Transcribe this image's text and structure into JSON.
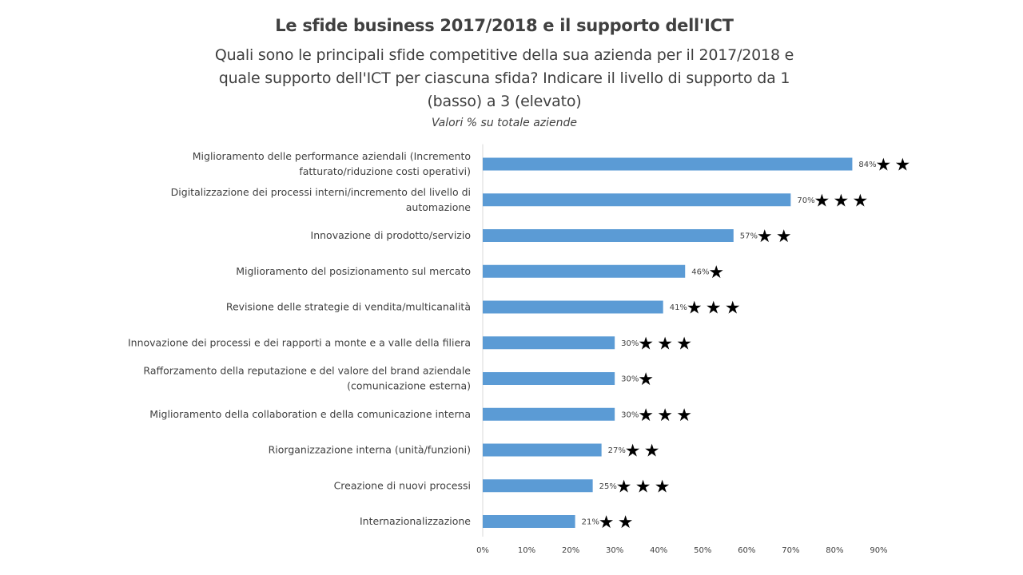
{
  "chart_data": {
    "type": "bar",
    "orientation": "horizontal",
    "title": "Le sfide business 2017/2018 e il supporto dell'ICT",
    "subtitle": "Quali sono le principali sfide competitive della sua azienda per il 2017/2018 e quale supporto dell'ICT per ciascuna sfida? Indicare il livello di supporto da 1 (basso) a 3 (elevato)",
    "subtitle_lines": [
      "Quali sono le principali sfide competitive della sua azienda per il 2017/2018 e",
      "quale supporto dell'ICT per ciascuna sfida? Indicare il livello di supporto da 1",
      "(basso) a 3 (elevato)"
    ],
    "note": "Valori % su totale aziende",
    "categories": [
      [
        "Miglioramento delle performance aziendali (Incremento",
        "fatturato/riduzione costi operativi)"
      ],
      [
        "Digitalizzazione dei processi interni/incremento del livello di",
        "automazione"
      ],
      [
        "Innovazione di prodotto/servizio"
      ],
      [
        "Miglioramento del posizionamento sul mercato"
      ],
      [
        "Revisione delle strategie di vendita/multicanalità"
      ],
      [
        "Innovazione dei processi e dei rapporti a monte e a valle della filiera"
      ],
      [
        "Rafforzamento della reputazione e del valore del brand aziendale",
        "(comunicazione esterna)"
      ],
      [
        "Miglioramento della collaboration e della comunicazione interna"
      ],
      [
        "Riorganizzazione interna (unità/funzioni)"
      ],
      [
        "Creazione di nuovi processi"
      ],
      [
        "Internazionalizzazione"
      ]
    ],
    "values": [
      84,
      70,
      57,
      46,
      41,
      30,
      30,
      30,
      27,
      25,
      21
    ],
    "value_labels": [
      "84%",
      "70%",
      "57%",
      "46%",
      "41%",
      "30%",
      "30%",
      "30%",
      "27%",
      "25%",
      "21%"
    ],
    "ict_support_stars": [
      2,
      3,
      2,
      1,
      3,
      3,
      1,
      3,
      2,
      3,
      2
    ],
    "x_ticks": [
      "0%",
      "10%",
      "20%",
      "30%",
      "40%",
      "50%",
      "60%",
      "70%",
      "80%",
      "90%"
    ],
    "xlim": [
      0,
      90
    ],
    "grid": false,
    "legend": "none",
    "bar_color": "#5b9bd5",
    "star_color": "#000000",
    "star_glyph": "★"
  }
}
